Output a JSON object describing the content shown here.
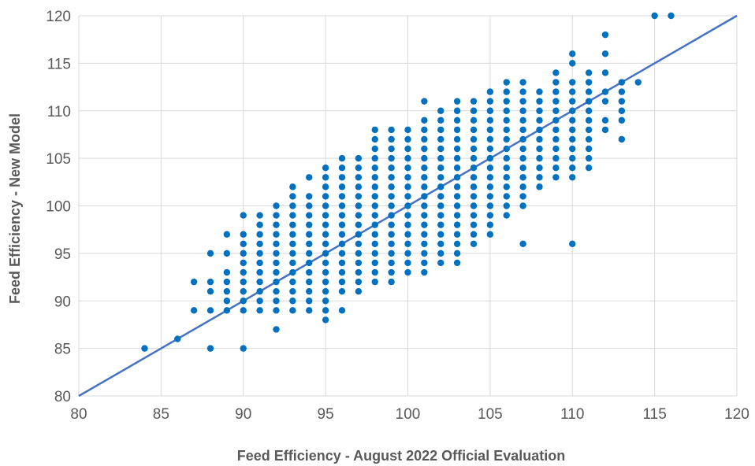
{
  "chart_data": {
    "type": "scatter",
    "title": "",
    "xlabel": "Feed Efficiency - August 2022 Official Evaluation",
    "ylabel": "Feed Efficiency - New Model",
    "xlim": [
      80,
      120
    ],
    "ylim": [
      80,
      120
    ],
    "x_ticks": [
      80,
      85,
      90,
      95,
      100,
      105,
      110,
      115,
      120
    ],
    "y_ticks": [
      80,
      85,
      90,
      95,
      100,
      105,
      110,
      115,
      120
    ],
    "grid": true,
    "legend": "none",
    "marker_color": "#0070C0",
    "line_color": "#4472C4",
    "reference_line": {
      "from": [
        80,
        80
      ],
      "to": [
        120,
        120
      ]
    },
    "points": [
      [
        84,
        85
      ],
      [
        86,
        86
      ],
      [
        87,
        89
      ],
      [
        87,
        92
      ],
      [
        88,
        85
      ],
      [
        88,
        89
      ],
      [
        88,
        91
      ],
      [
        88,
        92
      ],
      [
        88,
        95
      ],
      [
        89,
        89
      ],
      [
        89,
        90
      ],
      [
        89,
        91
      ],
      [
        89,
        92
      ],
      [
        89,
        93
      ],
      [
        89,
        95
      ],
      [
        89,
        97
      ],
      [
        90,
        85
      ],
      [
        90,
        89
      ],
      [
        90,
        90
      ],
      [
        90,
        91
      ],
      [
        90,
        92
      ],
      [
        90,
        93
      ],
      [
        90,
        94
      ],
      [
        90,
        95
      ],
      [
        90,
        96
      ],
      [
        90,
        97
      ],
      [
        90,
        99
      ],
      [
        91,
        89
      ],
      [
        91,
        90
      ],
      [
        91,
        91
      ],
      [
        91,
        92
      ],
      [
        91,
        93
      ],
      [
        91,
        94
      ],
      [
        91,
        95
      ],
      [
        91,
        96
      ],
      [
        91,
        97
      ],
      [
        91,
        98
      ],
      [
        91,
        99
      ],
      [
        92,
        87
      ],
      [
        92,
        89
      ],
      [
        92,
        90
      ],
      [
        92,
        91
      ],
      [
        92,
        92
      ],
      [
        92,
        93
      ],
      [
        92,
        94
      ],
      [
        92,
        95
      ],
      [
        92,
        96
      ],
      [
        92,
        97
      ],
      [
        92,
        98
      ],
      [
        92,
        99
      ],
      [
        92,
        100
      ],
      [
        93,
        89
      ],
      [
        93,
        90
      ],
      [
        93,
        91
      ],
      [
        93,
        92
      ],
      [
        93,
        93
      ],
      [
        93,
        94
      ],
      [
        93,
        95
      ],
      [
        93,
        96
      ],
      [
        93,
        97
      ],
      [
        93,
        98
      ],
      [
        93,
        99
      ],
      [
        93,
        100
      ],
      [
        93,
        101
      ],
      [
        93,
        102
      ],
      [
        94,
        89
      ],
      [
        94,
        90
      ],
      [
        94,
        91
      ],
      [
        94,
        92
      ],
      [
        94,
        93
      ],
      [
        94,
        94
      ],
      [
        94,
        95
      ],
      [
        94,
        96
      ],
      [
        94,
        97
      ],
      [
        94,
        98
      ],
      [
        94,
        99
      ],
      [
        94,
        100
      ],
      [
        94,
        101
      ],
      [
        94,
        103
      ],
      [
        95,
        88
      ],
      [
        95,
        89
      ],
      [
        95,
        90
      ],
      [
        95,
        91
      ],
      [
        95,
        92
      ],
      [
        95,
        93
      ],
      [
        95,
        94
      ],
      [
        95,
        95
      ],
      [
        95,
        96
      ],
      [
        95,
        97
      ],
      [
        95,
        98
      ],
      [
        95,
        99
      ],
      [
        95,
        100
      ],
      [
        95,
        101
      ],
      [
        95,
        102
      ],
      [
        95,
        103
      ],
      [
        95,
        104
      ],
      [
        96,
        89
      ],
      [
        96,
        91
      ],
      [
        96,
        92
      ],
      [
        96,
        93
      ],
      [
        96,
        94
      ],
      [
        96,
        95
      ],
      [
        96,
        96
      ],
      [
        96,
        97
      ],
      [
        96,
        98
      ],
      [
        96,
        99
      ],
      [
        96,
        100
      ],
      [
        96,
        101
      ],
      [
        96,
        102
      ],
      [
        96,
        103
      ],
      [
        96,
        104
      ],
      [
        96,
        105
      ],
      [
        97,
        91
      ],
      [
        97,
        92
      ],
      [
        97,
        93
      ],
      [
        97,
        94
      ],
      [
        97,
        95
      ],
      [
        97,
        96
      ],
      [
        97,
        97
      ],
      [
        97,
        98
      ],
      [
        97,
        99
      ],
      [
        97,
        100
      ],
      [
        97,
        101
      ],
      [
        97,
        102
      ],
      [
        97,
        103
      ],
      [
        97,
        104
      ],
      [
        97,
        105
      ],
      [
        98,
        92
      ],
      [
        98,
        93
      ],
      [
        98,
        94
      ],
      [
        98,
        95
      ],
      [
        98,
        96
      ],
      [
        98,
        97
      ],
      [
        98,
        98
      ],
      [
        98,
        99
      ],
      [
        98,
        100
      ],
      [
        98,
        101
      ],
      [
        98,
        102
      ],
      [
        98,
        103
      ],
      [
        98,
        104
      ],
      [
        98,
        105
      ],
      [
        98,
        106
      ],
      [
        98,
        107
      ],
      [
        98,
        108
      ],
      [
        99,
        92
      ],
      [
        99,
        93
      ],
      [
        99,
        94
      ],
      [
        99,
        95
      ],
      [
        99,
        96
      ],
      [
        99,
        97
      ],
      [
        99,
        98
      ],
      [
        99,
        99
      ],
      [
        99,
        100
      ],
      [
        99,
        101
      ],
      [
        99,
        102
      ],
      [
        99,
        103
      ],
      [
        99,
        104
      ],
      [
        99,
        105
      ],
      [
        99,
        106
      ],
      [
        99,
        107
      ],
      [
        99,
        108
      ],
      [
        100,
        93
      ],
      [
        100,
        94
      ],
      [
        100,
        95
      ],
      [
        100,
        96
      ],
      [
        100,
        97
      ],
      [
        100,
        98
      ],
      [
        100,
        99
      ],
      [
        100,
        100
      ],
      [
        100,
        101
      ],
      [
        100,
        102
      ],
      [
        100,
        103
      ],
      [
        100,
        104
      ],
      [
        100,
        105
      ],
      [
        100,
        106
      ],
      [
        100,
        107
      ],
      [
        100,
        108
      ],
      [
        101,
        93
      ],
      [
        101,
        94
      ],
      [
        101,
        95
      ],
      [
        101,
        96
      ],
      [
        101,
        97
      ],
      [
        101,
        98
      ],
      [
        101,
        99
      ],
      [
        101,
        100
      ],
      [
        101,
        101
      ],
      [
        101,
        102
      ],
      [
        101,
        103
      ],
      [
        101,
        104
      ],
      [
        101,
        105
      ],
      [
        101,
        106
      ],
      [
        101,
        107
      ],
      [
        101,
        108
      ],
      [
        101,
        109
      ],
      [
        101,
        111
      ],
      [
        102,
        94
      ],
      [
        102,
        95
      ],
      [
        102,
        96
      ],
      [
        102,
        97
      ],
      [
        102,
        98
      ],
      [
        102,
        99
      ],
      [
        102,
        100
      ],
      [
        102,
        101
      ],
      [
        102,
        102
      ],
      [
        102,
        103
      ],
      [
        102,
        104
      ],
      [
        102,
        105
      ],
      [
        102,
        106
      ],
      [
        102,
        107
      ],
      [
        102,
        108
      ],
      [
        102,
        109
      ],
      [
        102,
        110
      ],
      [
        103,
        94
      ],
      [
        103,
        95
      ],
      [
        103,
        96
      ],
      [
        103,
        97
      ],
      [
        103,
        98
      ],
      [
        103,
        99
      ],
      [
        103,
        100
      ],
      [
        103,
        101
      ],
      [
        103,
        102
      ],
      [
        103,
        103
      ],
      [
        103,
        104
      ],
      [
        103,
        105
      ],
      [
        103,
        106
      ],
      [
        103,
        107
      ],
      [
        103,
        108
      ],
      [
        103,
        109
      ],
      [
        103,
        110
      ],
      [
        103,
        111
      ],
      [
        104,
        96
      ],
      [
        104,
        97
      ],
      [
        104,
        98
      ],
      [
        104,
        99
      ],
      [
        104,
        100
      ],
      [
        104,
        101
      ],
      [
        104,
        102
      ],
      [
        104,
        103
      ],
      [
        104,
        104
      ],
      [
        104,
        105
      ],
      [
        104,
        106
      ],
      [
        104,
        107
      ],
      [
        104,
        108
      ],
      [
        104,
        109
      ],
      [
        104,
        110
      ],
      [
        104,
        111
      ],
      [
        105,
        97
      ],
      [
        105,
        98
      ],
      [
        105,
        99
      ],
      [
        105,
        100
      ],
      [
        105,
        101
      ],
      [
        105,
        102
      ],
      [
        105,
        103
      ],
      [
        105,
        104
      ],
      [
        105,
        105
      ],
      [
        105,
        106
      ],
      [
        105,
        107
      ],
      [
        105,
        108
      ],
      [
        105,
        109
      ],
      [
        105,
        110
      ],
      [
        105,
        111
      ],
      [
        105,
        112
      ],
      [
        106,
        99
      ],
      [
        106,
        100
      ],
      [
        106,
        101
      ],
      [
        106,
        102
      ],
      [
        106,
        103
      ],
      [
        106,
        104
      ],
      [
        106,
        105
      ],
      [
        106,
        106
      ],
      [
        106,
        107
      ],
      [
        106,
        108
      ],
      [
        106,
        109
      ],
      [
        106,
        110
      ],
      [
        106,
        111
      ],
      [
        106,
        112
      ],
      [
        106,
        113
      ],
      [
        107,
        96
      ],
      [
        107,
        100
      ],
      [
        107,
        101
      ],
      [
        107,
        102
      ],
      [
        107,
        103
      ],
      [
        107,
        104
      ],
      [
        107,
        105
      ],
      [
        107,
        106
      ],
      [
        107,
        107
      ],
      [
        107,
        108
      ],
      [
        107,
        109
      ],
      [
        107,
        110
      ],
      [
        107,
        111
      ],
      [
        107,
        112
      ],
      [
        107,
        113
      ],
      [
        108,
        102
      ],
      [
        108,
        103
      ],
      [
        108,
        104
      ],
      [
        108,
        105
      ],
      [
        108,
        106
      ],
      [
        108,
        107
      ],
      [
        108,
        108
      ],
      [
        108,
        109
      ],
      [
        108,
        110
      ],
      [
        108,
        111
      ],
      [
        108,
        112
      ],
      [
        109,
        103
      ],
      [
        109,
        104
      ],
      [
        109,
        105
      ],
      [
        109,
        106
      ],
      [
        109,
        107
      ],
      [
        109,
        108
      ],
      [
        109,
        109
      ],
      [
        109,
        110
      ],
      [
        109,
        111
      ],
      [
        109,
        112
      ],
      [
        109,
        113
      ],
      [
        109,
        114
      ],
      [
        110,
        96
      ],
      [
        110,
        103
      ],
      [
        110,
        104
      ],
      [
        110,
        105
      ],
      [
        110,
        106
      ],
      [
        110,
        107
      ],
      [
        110,
        108
      ],
      [
        110,
        109
      ],
      [
        110,
        110
      ],
      [
        110,
        111
      ],
      [
        110,
        112
      ],
      [
        110,
        113
      ],
      [
        110,
        115
      ],
      [
        110,
        116
      ],
      [
        111,
        104
      ],
      [
        111,
        105
      ],
      [
        111,
        106
      ],
      [
        111,
        107
      ],
      [
        111,
        108
      ],
      [
        111,
        109
      ],
      [
        111,
        110
      ],
      [
        111,
        111
      ],
      [
        111,
        112
      ],
      [
        111,
        113
      ],
      [
        111,
        114
      ],
      [
        112,
        108
      ],
      [
        112,
        109
      ],
      [
        112,
        111
      ],
      [
        112,
        112
      ],
      [
        112,
        114
      ],
      [
        112,
        116
      ],
      [
        112,
        118
      ],
      [
        113,
        107
      ],
      [
        113,
        109
      ],
      [
        113,
        110
      ],
      [
        113,
        111
      ],
      [
        113,
        112
      ],
      [
        113,
        113
      ],
      [
        114,
        113
      ],
      [
        115,
        120
      ],
      [
        116,
        120
      ]
    ]
  }
}
